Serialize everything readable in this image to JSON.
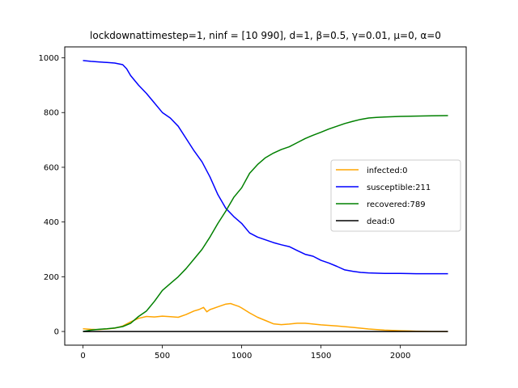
{
  "chart_data": {
    "type": "line",
    "title": "lockdownattimestep=1, ninf = [10 990], d=1, β=0.5, γ=0.01, μ=0, α=0",
    "xlabel": "",
    "ylabel": "",
    "xlim": [
      -115,
      2415
    ],
    "ylim": [
      -50,
      1040
    ],
    "xticks": [
      0,
      500,
      1000,
      1500,
      2000
    ],
    "yticks": [
      0,
      200,
      400,
      600,
      800,
      1000
    ],
    "grid": false,
    "legend_position": "center-right",
    "series": [
      {
        "name": "infected:0",
        "color": "#ffa500",
        "x": [
          0,
          50,
          100,
          150,
          200,
          250,
          300,
          350,
          400,
          450,
          500,
          550,
          600,
          650,
          700,
          730,
          760,
          780,
          800,
          850,
          900,
          930,
          950,
          980,
          1000,
          1050,
          1100,
          1150,
          1200,
          1250,
          1300,
          1350,
          1400,
          1450,
          1500,
          1600,
          1700,
          1800,
          1900,
          2000,
          2100,
          2200,
          2300
        ],
        "y": [
          10,
          8,
          7,
          9,
          12,
          20,
          35,
          48,
          55,
          53,
          56,
          54,
          52,
          62,
          75,
          80,
          88,
          72,
          80,
          90,
          100,
          102,
          98,
          92,
          86,
          68,
          52,
          40,
          28,
          25,
          27,
          30,
          30,
          27,
          24,
          20,
          15,
          9,
          5,
          3,
          1,
          0,
          0
        ]
      },
      {
        "name": "susceptible:211",
        "color": "#0000ff",
        "x": [
          0,
          50,
          100,
          150,
          200,
          250,
          275,
          300,
          350,
          400,
          450,
          500,
          550,
          600,
          650,
          700,
          750,
          800,
          850,
          900,
          950,
          1000,
          1050,
          1100,
          1150,
          1200,
          1250,
          1300,
          1350,
          1400,
          1450,
          1500,
          1550,
          1600,
          1650,
          1700,
          1750,
          1800,
          1900,
          2000,
          2100,
          2200,
          2300
        ],
        "y": [
          990,
          987,
          985,
          983,
          981,
          975,
          960,
          935,
          900,
          870,
          835,
          800,
          780,
          750,
          705,
          660,
          620,
          565,
          500,
          450,
          420,
          395,
          360,
          345,
          335,
          325,
          317,
          310,
          296,
          282,
          275,
          260,
          250,
          238,
          225,
          220,
          216,
          214,
          212,
          212,
          211,
          211,
          211
        ]
      },
      {
        "name": "recovered:789",
        "color": "#008000",
        "x": [
          0,
          50,
          100,
          150,
          200,
          250,
          300,
          350,
          400,
          450,
          500,
          550,
          600,
          650,
          700,
          750,
          800,
          850,
          900,
          950,
          1000,
          1050,
          1100,
          1150,
          1200,
          1250,
          1300,
          1350,
          1400,
          1450,
          1500,
          1550,
          1600,
          1650,
          1700,
          1750,
          1800,
          1850,
          1900,
          2000,
          2100,
          2200,
          2300
        ],
        "y": [
          0,
          5,
          8,
          10,
          13,
          18,
          30,
          55,
          75,
          110,
          150,
          175,
          200,
          230,
          265,
          300,
          345,
          395,
          440,
          490,
          525,
          578,
          610,
          635,
          652,
          665,
          675,
          690,
          705,
          717,
          728,
          740,
          750,
          760,
          768,
          775,
          780,
          782,
          784,
          786,
          787,
          788,
          789
        ]
      },
      {
        "name": "dead:0",
        "color": "#000000",
        "x": [
          0,
          2300
        ],
        "y": [
          0,
          0
        ]
      }
    ]
  }
}
